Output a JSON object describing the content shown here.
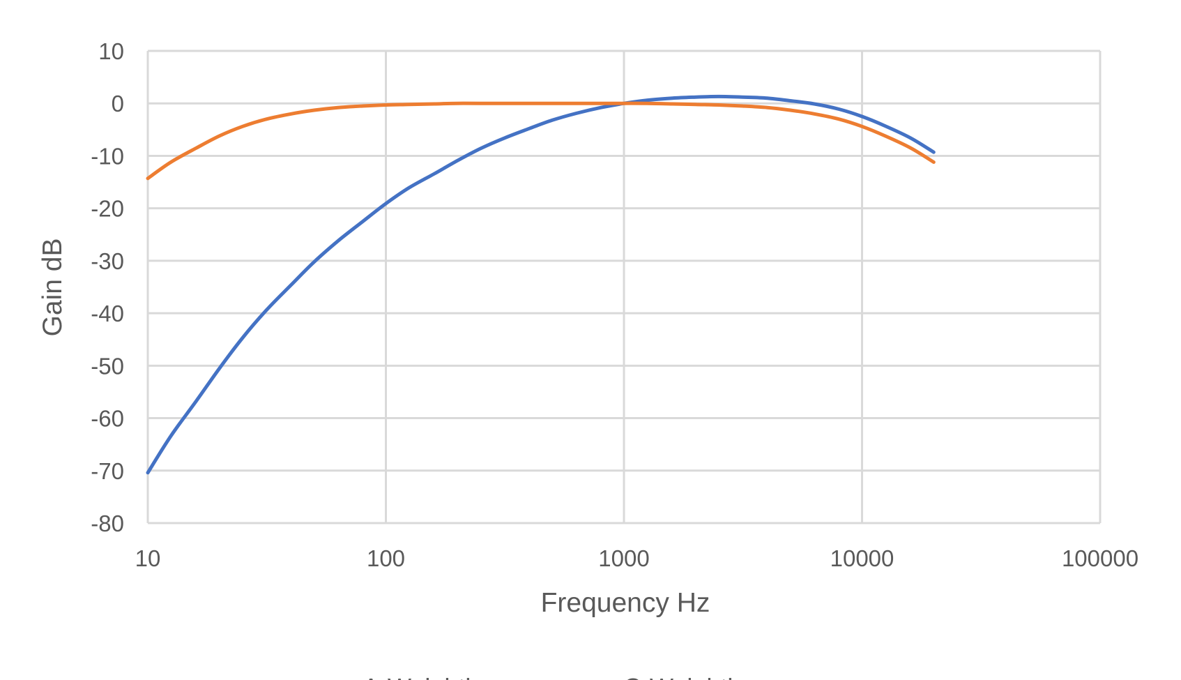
{
  "chart_data": {
    "type": "line",
    "title": "",
    "xlabel": "Frequency Hz",
    "ylabel": "Gain dB",
    "xscale": "log",
    "xlim": [
      10,
      100000
    ],
    "ylim": [
      -80,
      10
    ],
    "xticks": [
      "10",
      "100",
      "1000",
      "10000",
      "100000"
    ],
    "yticks": [
      "10",
      "0",
      "-10",
      "-20",
      "-30",
      "-40",
      "-50",
      "-60",
      "-70",
      "-80"
    ],
    "grid": true,
    "legend": "bottom",
    "series": [
      {
        "name": "A-Weighting",
        "color": "#4472c4",
        "x": [
          10,
          12.5,
          16,
          20,
          25,
          31.5,
          40,
          50,
          63,
          80,
          100,
          125,
          160,
          200,
          250,
          315,
          400,
          500,
          630,
          800,
          1000,
          1250,
          1600,
          2000,
          2500,
          3150,
          4000,
          5000,
          6300,
          8000,
          10000,
          12500,
          16000,
          20000
        ],
        "y": [
          -70.4,
          -63.4,
          -56.7,
          -50.5,
          -44.7,
          -39.4,
          -34.6,
          -30.2,
          -26.2,
          -22.5,
          -19.1,
          -16.1,
          -13.4,
          -10.9,
          -8.6,
          -6.6,
          -4.8,
          -3.2,
          -1.9,
          -0.8,
          0.0,
          0.6,
          1.0,
          1.2,
          1.3,
          1.2,
          1.0,
          0.5,
          -0.1,
          -1.1,
          -2.5,
          -4.3,
          -6.6,
          -9.3
        ]
      },
      {
        "name": "C-Weighting",
        "color": "#ed7d31",
        "x": [
          10,
          12.5,
          16,
          20,
          25,
          31.5,
          40,
          50,
          63,
          80,
          100,
          125,
          160,
          200,
          250,
          315,
          400,
          500,
          630,
          800,
          1000,
          1250,
          1600,
          2000,
          2500,
          3150,
          4000,
          5000,
          6300,
          8000,
          10000,
          12500,
          16000,
          20000
        ],
        "y": [
          -14.3,
          -11.2,
          -8.5,
          -6.2,
          -4.4,
          -3.0,
          -2.0,
          -1.3,
          -0.8,
          -0.5,
          -0.3,
          -0.2,
          -0.1,
          0.0,
          0.0,
          0.0,
          0.0,
          0.0,
          0.0,
          0.0,
          0.0,
          0.0,
          -0.1,
          -0.2,
          -0.3,
          -0.5,
          -0.8,
          -1.3,
          -2.0,
          -3.0,
          -4.4,
          -6.2,
          -8.5,
          -11.2
        ]
      }
    ]
  }
}
